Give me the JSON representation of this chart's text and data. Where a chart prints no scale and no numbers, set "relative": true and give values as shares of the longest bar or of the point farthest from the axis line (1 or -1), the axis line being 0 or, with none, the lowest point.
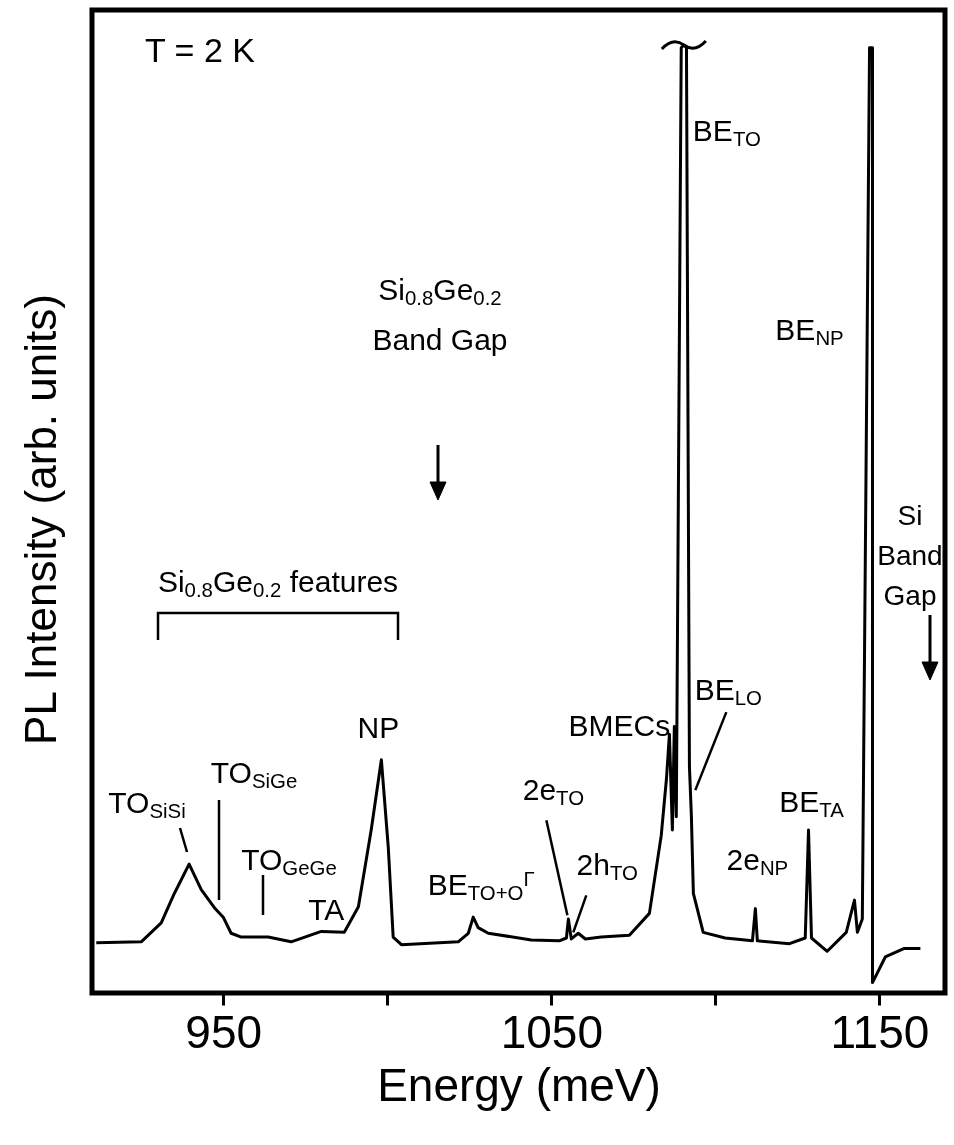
{
  "chart_data": {
    "type": "line",
    "xlabel": "Energy (meV)",
    "ylabel": "PL Intensity (arb. units)",
    "relative": true,
    "color": "#000000",
    "line_style": "solid",
    "xlim": [
      910,
      1170
    ],
    "xticks": [
      950,
      {
        "value": 1000,
        "label": null
      },
      1050,
      {
        "value": 1100,
        "label": null
      },
      1150
    ],
    "x": [
      911.3,
      925,
      931.1,
      935.1,
      939.6,
      943.3,
      947.3,
      950,
      952.4,
      955.5,
      963.7,
      970.7,
      979.9,
      986.9,
      991.2,
      995.1,
      998.2,
      1000.3,
      1001.8,
      1004.3,
      1021.6,
      1024.7,
      1026.2,
      1027.7,
      1030.8,
      1043.9,
      1052.4,
      1054.6,
      1055.2,
      1056.1,
      1058.2,
      1060.4,
      1065.2,
      1073.8,
      1079.9,
      1083.5,
      1085.1,
      1086.0,
      1086.9,
      1087.5,
      1088.1,
      1089.6,
      1090.4,
      1091.2,
      1092.1,
      1092.7,
      1093.3,
      1096.3,
      1103.0,
      1111.3,
      1112.2,
      1112.8,
      1122.6,
      1127.4,
      1128.4,
      1129.3,
      1134.1,
      1139.9,
      1142.4,
      1143.3,
      1144.8,
      1147.0,
      1147.9,
      1147.9,
      1151.8,
      1157.6,
      1162.5
    ],
    "values": [
      0.053,
      0.054,
      0.074,
      0.105,
      0.136,
      0.109,
      0.09,
      0.08,
      0.063,
      0.059,
      0.059,
      0.054,
      0.065,
      0.064,
      0.091,
      0.172,
      0.246,
      0.154,
      0.059,
      0.051,
      0.054,
      0.063,
      0.08,
      0.069,
      0.063,
      0.056,
      0.055,
      0.058,
      0.078,
      0.057,
      0.063,
      0.057,
      0.059,
      0.061,
      0.084,
      0.166,
      0.226,
      0.273,
      0.172,
      0.281,
      0.186,
      0.997,
      1,
      0.997,
      0.239,
      0.186,
      0.105,
      0.064,
      0.058,
      0.055,
      0.089,
      0.055,
      0.052,
      0.058,
      0.172,
      0.058,
      0.044,
      0.064,
      0.098,
      0.064,
      0.078,
      0.997,
      0.997,
      0.011,
      0.038,
      0.047,
      0.047
    ],
    "annotations": [
      "T = 2 K",
      "TO$_{SiSi}$",
      "TO$_{SiGe}$",
      "TO$_{GeGe}$",
      {
        "text": "TA",
        "x": 981.4,
        "y": 0.061
      },
      {
        "text": "NP",
        "x": 998.2,
        "y": 0.246
      },
      {
        "text": "BE$_{TO+O}$$^{Γ}$",
        "x": 1026.2,
        "y": 0.08
      },
      {
        "text": "2e$_{TO}$",
        "x": 1054.9,
        "y": 0.082
      },
      {
        "text": "2h$_{TO}$",
        "x": 1056.7,
        "y": 0.064
      },
      {
        "text": "BMECs",
        "x": 1086.0,
        "y": 0.275
      },
      {
        "text": "BE$_{LO}$",
        "x": 1093.9,
        "y": 0.214
      },
      {
        "text": "BE$_{TO}$",
        "x": 1090.4,
        "y": 0.92
      },
      {
        "text": "BE$_{NP}$",
        "x": 1147.0,
        "y": 0.68
      },
      {
        "text": "2e$_{NP}$",
        "x": 1112.2,
        "y": 0.089
      },
      {
        "text": "BE$_{TA}$",
        "x": 1128.4,
        "y": 0.172
      },
      "Si$_{0.8}$Ge$_{0.2}$\nBand Gap",
      "Si\nBand\nGap",
      "Si$_{0.8}$Ge$_{0.2}$ features"
    ]
  }
}
